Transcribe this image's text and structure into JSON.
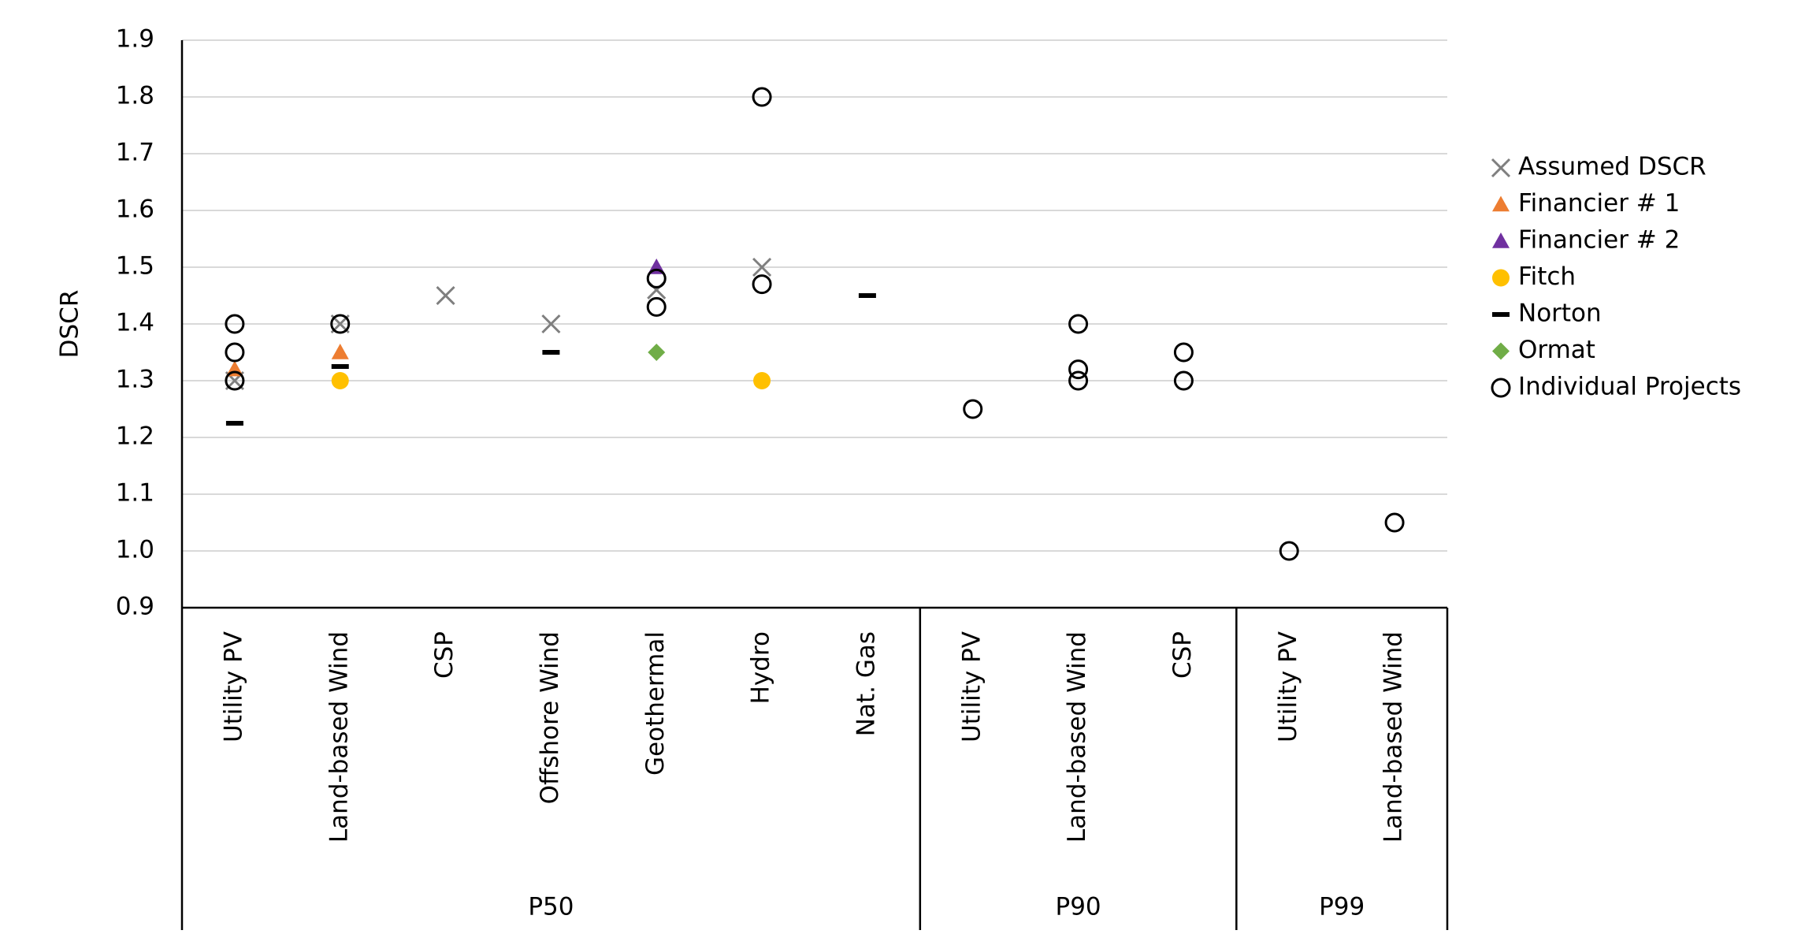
{
  "chart_data": {
    "type": "scatter",
    "y_label": "DSCR",
    "categories": [
      "Utility PV",
      "Land-based Wind",
      "CSP",
      "Offshore Wind",
      "Geothermal",
      "Hydro",
      "Nat. Gas",
      "Utility PV",
      "Land-based Wind",
      "CSP",
      "Utility PV",
      "Land-based Wind"
    ],
    "groups": [
      {
        "name": "P50",
        "count": 7
      },
      {
        "name": "P90",
        "count": 3
      },
      {
        "name": "P99",
        "count": 2
      }
    ],
    "ylim": [
      0.9,
      1.9
    ],
    "yticks": [
      0.9,
      {
        "value": 1,
        "label": "1.0"
      },
      1.1,
      1.2,
      1.3,
      1.4,
      1.5,
      1.6,
      1.7,
      1.8,
      1.9
    ],
    "grid": true,
    "series": [
      {
        "name": "Assumed DSCR",
        "color": "#7f7f7f",
        "marker": "x",
        "values": [
          1.3,
          1.4,
          1.45,
          1.4,
          1.46,
          1.5,
          null,
          null,
          null,
          null,
          null,
          null
        ]
      },
      {
        "name": "Financier # 1",
        "color": "#ed7d31",
        "marker": "triangle",
        "values": [
          1.32,
          1.35,
          null,
          null,
          null,
          null,
          null,
          null,
          null,
          null,
          null,
          null
        ]
      },
      {
        "name": "Financier # 2",
        "color": "#7030a0",
        "marker": "triangle",
        "values": [
          null,
          null,
          null,
          null,
          1.5,
          null,
          null,
          null,
          null,
          null,
          null,
          null
        ]
      },
      {
        "name": "Fitch",
        "color": "#ffc000",
        "marker": "circle",
        "values": [
          null,
          1.3,
          null,
          null,
          null,
          1.3,
          null,
          null,
          null,
          null,
          null,
          null
        ]
      },
      {
        "name": "Norton",
        "color": "#000000",
        "marker": "dash",
        "values": [
          1.225,
          1.325,
          null,
          1.35,
          null,
          null,
          1.45,
          null,
          null,
          null,
          null,
          null
        ]
      },
      {
        "name": "Ormat",
        "color": "#70ad47",
        "marker": "diamond",
        "values": [
          null,
          null,
          null,
          null,
          1.35,
          null,
          null,
          null,
          null,
          null,
          null,
          null
        ]
      },
      {
        "name": "Individual Projects",
        "color": "#000000",
        "marker": "open-circle",
        "values": [
          [
            1.4,
            1.35,
            1.3
          ],
          [
            1.4
          ],
          null,
          null,
          [
            1.48,
            1.43
          ],
          [
            1.8,
            1.47
          ],
          null,
          [
            1.25
          ],
          [
            1.4,
            1.32,
            1.3
          ],
          [
            1.35,
            1.3
          ],
          [
            1.0
          ],
          [
            1.05
          ]
        ]
      }
    ]
  }
}
